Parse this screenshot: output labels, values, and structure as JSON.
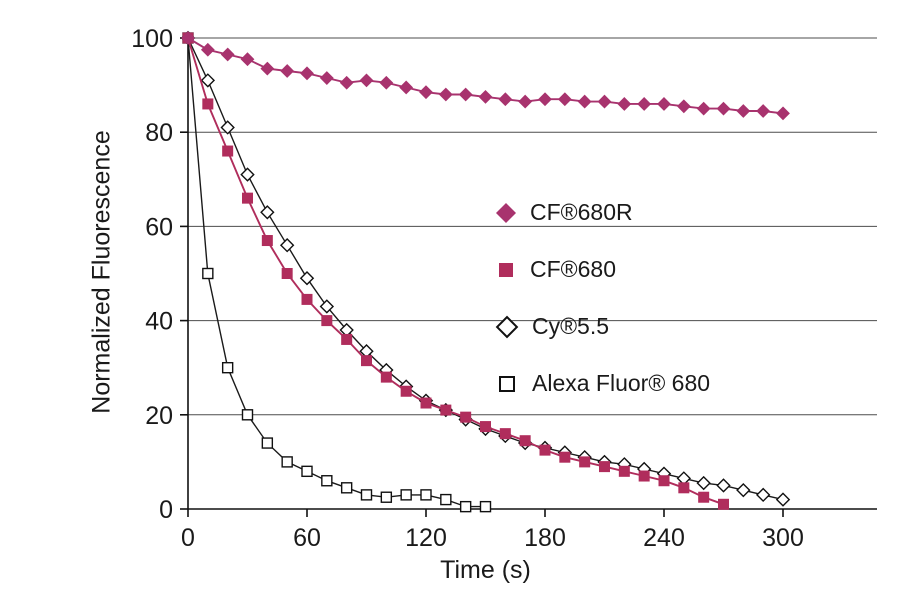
{
  "chart_data": {
    "type": "line",
    "title": "",
    "xlabel": "Time (s)",
    "ylabel": "Normalized Fluorescence",
    "xlim": [
      0,
      348
    ],
    "ylim": [
      0,
      100
    ],
    "xticks": [
      0,
      60,
      120,
      180,
      240,
      300
    ],
    "yticks": [
      0,
      20,
      40,
      60,
      80,
      100
    ],
    "grid": "horizontal",
    "legend_position": "center-right",
    "series": [
      {
        "name": "CF®680R",
        "marker": "diamond-filled",
        "color": "#a8336e",
        "x": [
          0,
          10,
          20,
          30,
          40,
          50,
          60,
          70,
          80,
          90,
          100,
          110,
          120,
          130,
          140,
          150,
          160,
          170,
          180,
          190,
          200,
          210,
          220,
          230,
          240,
          250,
          260,
          270,
          280,
          290,
          300
        ],
        "y": [
          100,
          97.5,
          96.5,
          95.5,
          93.5,
          93,
          92.5,
          91.5,
          90.5,
          91,
          90.5,
          89.5,
          88.5,
          88,
          88,
          87.5,
          87,
          86.5,
          87,
          87,
          86.5,
          86.5,
          86,
          86,
          86,
          85.5,
          85,
          85,
          84.5,
          84.5,
          84
        ]
      },
      {
        "name": "CF®680",
        "marker": "square-filled",
        "color": "#b02d5c",
        "x": [
          0,
          10,
          20,
          30,
          40,
          50,
          60,
          70,
          80,
          90,
          100,
          110,
          120,
          130,
          140,
          150,
          160,
          170,
          180,
          190,
          200,
          210,
          220,
          230,
          240,
          250,
          260,
          270
        ],
        "y": [
          100,
          86,
          76,
          66,
          57,
          50,
          44.5,
          40,
          36,
          31.5,
          28,
          25,
          22.5,
          21,
          19.5,
          17.5,
          16,
          14.5,
          12.5,
          11,
          10,
          9,
          8,
          7,
          6,
          4.5,
          2.5,
          1
        ]
      },
      {
        "name": "Cy®5.5",
        "marker": "diamond-open",
        "color": "#1a1a1a",
        "x": [
          0,
          10,
          20,
          30,
          40,
          50,
          60,
          70,
          80,
          90,
          100,
          110,
          120,
          130,
          140,
          150,
          160,
          170,
          180,
          190,
          200,
          210,
          220,
          230,
          240,
          250,
          260,
          270,
          280,
          290,
          300
        ],
        "y": [
          100,
          91,
          81,
          71,
          63,
          56,
          49,
          43,
          38,
          33.5,
          29.5,
          26,
          23,
          21,
          19,
          17,
          15.5,
          14,
          13,
          12,
          11,
          10,
          9.5,
          8.5,
          7.5,
          6.5,
          5.5,
          5,
          4,
          3,
          2
        ]
      },
      {
        "name": "Alexa Fluor® 680",
        "marker": "square-open",
        "color": "#1a1a1a",
        "x": [
          0,
          10,
          20,
          30,
          40,
          50,
          60,
          70,
          80,
          90,
          100,
          110,
          120,
          130,
          140,
          150
        ],
        "y": [
          100,
          50,
          30,
          20,
          14,
          10,
          8,
          6,
          4.5,
          3,
          2.5,
          3,
          3,
          2,
          0.5,
          0.5
        ]
      }
    ]
  }
}
